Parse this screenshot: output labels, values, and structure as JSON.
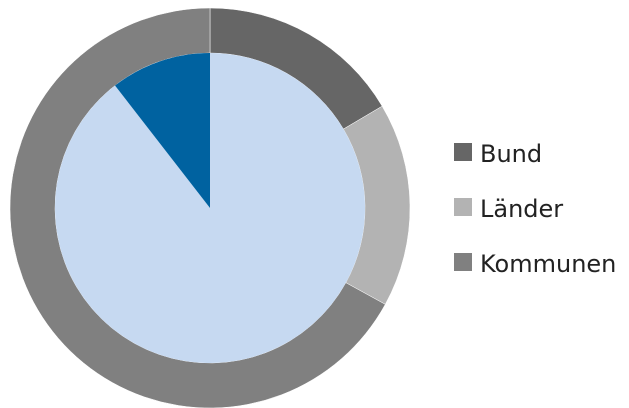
{
  "chart_data": {
    "type": "pie",
    "title": "",
    "legend_position": "right",
    "series": [
      {
        "ring": "outer",
        "slices": [
          {
            "label": "Bund",
            "value": 16.5,
            "color": "#666666"
          },
          {
            "label": "Länder",
            "value": 16.5,
            "color": "#b3b3b3"
          },
          {
            "label": "Kommunen",
            "value": 67,
            "color": "#808080"
          }
        ]
      },
      {
        "ring": "inner",
        "slices": [
          {
            "value": 89.5,
            "color": "#c6d9f1"
          },
          {
            "value": 10.5,
            "color": "#0062a0"
          }
        ]
      }
    ],
    "legend": [
      {
        "label": "Bund",
        "color": "#666666"
      },
      {
        "label": "Länder",
        "color": "#b3b3b3"
      },
      {
        "label": "Kommunen",
        "color": "#808080"
      }
    ]
  }
}
